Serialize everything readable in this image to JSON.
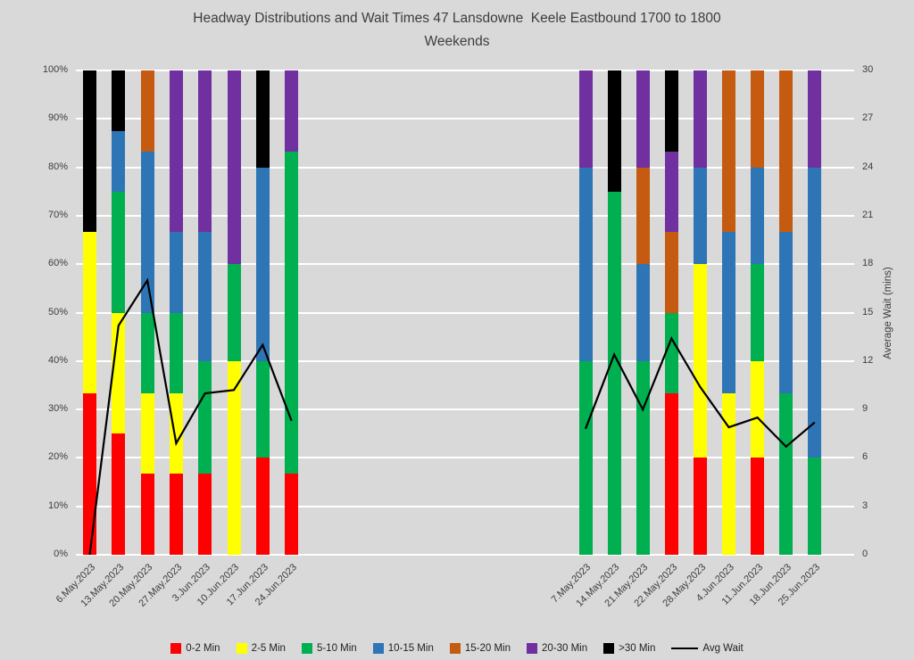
{
  "chart_data": {
    "type": "bar",
    "stacking": "percent",
    "overlay_line": true,
    "title": "Headway Distributions and Wait Times 47 Lansdowne  Keele Eastbound 1700 to 1800",
    "subtitle": "Weekends",
    "background": "#d9d9d9",
    "gridline_color": "#ffffff",
    "text_color": "#3d3d3d",
    "left_axis": {
      "min": 0,
      "max": 100,
      "ticks": [
        "0%",
        "10%",
        "20%",
        "30%",
        "40%",
        "50%",
        "60%",
        "70%",
        "80%",
        "90%",
        "100%"
      ]
    },
    "right_axis": {
      "label": "Average Wait (mins)",
      "min": 0,
      "max": 30,
      "step": 3,
      "ticks": [
        "0",
        "3",
        "6",
        "9",
        "12",
        "15",
        "18",
        "21",
        "24",
        "27",
        "30"
      ]
    },
    "series": [
      {
        "name": "0-2 Min",
        "color": "#ff0000"
      },
      {
        "name": "2-5 Min",
        "color": "#ffff00"
      },
      {
        "name": "5-10 Min",
        "color": "#00b050"
      },
      {
        "name": "10-15 Min",
        "color": "#2e75b6"
      },
      {
        "name": "15-20 Min",
        "color": "#c55a11"
      },
      {
        "name": "20-30 Min",
        "color": "#7030a0"
      },
      {
        "name": ">30 Min",
        "color": "#000000"
      }
    ],
    "line_series": {
      "name": "Avg Wait",
      "color": "#000000"
    },
    "groups": [
      {
        "bars": [
          {
            "date": "6.May.2023",
            "segments": [
              33.3,
              33.4,
              0,
              0,
              0,
              0,
              33.3
            ],
            "avg_wait": 0
          },
          {
            "date": "13.May.2023",
            "segments": [
              25,
              25,
              25,
              12.5,
              0,
              0,
              12.5
            ],
            "avg_wait": 14.2
          },
          {
            "date": "20.May.2023",
            "segments": [
              16.7,
              16.6,
              16.7,
              33.3,
              16.7,
              0,
              0
            ],
            "avg_wait": 17
          },
          {
            "date": "27.May.2023",
            "segments": [
              16.7,
              16.6,
              16.7,
              16.7,
              0,
              33.3,
              0
            ],
            "avg_wait": 6.9
          },
          {
            "date": "3.Jun.2023",
            "segments": [
              16.7,
              0,
              23.3,
              26.7,
              0,
              33.3,
              0
            ],
            "avg_wait": 10
          },
          {
            "date": "10.Jun.2023",
            "segments": [
              0,
              40,
              20,
              0,
              0,
              40,
              0
            ],
            "avg_wait": 10.2
          },
          {
            "date": "17.Jun.2023",
            "segments": [
              20,
              0,
              20,
              40,
              0,
              0,
              20
            ],
            "avg_wait": 13
          },
          {
            "date": "24.Jun.2023",
            "segments": [
              16.7,
              0,
              66.6,
              0,
              0,
              16.7,
              0
            ],
            "avg_wait": 8.3
          }
        ]
      },
      {
        "bars": [
          {
            "date": "7.May.2023",
            "segments": [
              0,
              0,
              40,
              40,
              0,
              20,
              0
            ],
            "avg_wait": 7.8
          },
          {
            "date": "14.May.2023",
            "segments": [
              0,
              0,
              75,
              0,
              0,
              0,
              25
            ],
            "avg_wait": 12.4
          },
          {
            "date": "21.May.2023",
            "segments": [
              0,
              0,
              40,
              20,
              20,
              20,
              0
            ],
            "avg_wait": 9
          },
          {
            "date": "22.May.2023",
            "segments": [
              33.3,
              0,
              16.7,
              0,
              16.7,
              16.6,
              16.7
            ],
            "avg_wait": 13.4
          },
          {
            "date": "28.May.2023",
            "segments": [
              20,
              40,
              0,
              20,
              0,
              20,
              0
            ],
            "avg_wait": 10.4
          },
          {
            "date": "4.Jun.2023",
            "segments": [
              0,
              33.3,
              0,
              33.4,
              33.3,
              0,
              0
            ],
            "avg_wait": 7.9
          },
          {
            "date": "11.Jun.2023",
            "segments": [
              20,
              20,
              20,
              20,
              20,
              0,
              0
            ],
            "avg_wait": 8.5
          },
          {
            "date": "18.Jun.2023",
            "segments": [
              0,
              0,
              33.3,
              33.4,
              33.3,
              0,
              0
            ],
            "avg_wait": 6.7
          },
          {
            "date": "25.Jun.2023",
            "segments": [
              0,
              0,
              20,
              60,
              0,
              20,
              0
            ],
            "avg_wait": 8.2
          }
        ]
      }
    ]
  }
}
